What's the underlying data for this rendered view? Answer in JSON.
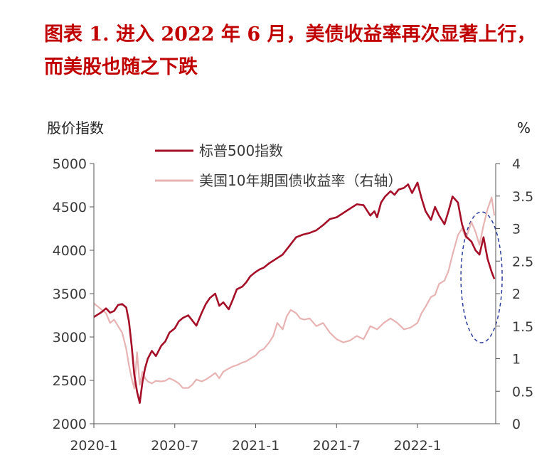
{
  "title": "图表 1.  进入 2022 年 6 月，美债收益率再次显著上行，而美股也随之下跌",
  "chart_data": {
    "type": "line",
    "left_axis_label": "股价指数",
    "right_axis_label": "%",
    "left_ylim": [
      2000,
      5000
    ],
    "left_ticks": [
      "5000",
      "4500",
      "4000",
      "3500",
      "3000",
      "2500",
      "2000"
    ],
    "left_tick_values": [
      5000,
      4500,
      4000,
      3500,
      3000,
      2500,
      2000
    ],
    "right_ylim": [
      0,
      4
    ],
    "right_ticks": [
      "4",
      "3.5",
      "3",
      "2.5",
      "2",
      "1.5",
      "1",
      "0.5",
      "0"
    ],
    "right_tick_values": [
      4,
      3.5,
      3,
      2.5,
      2,
      1.5,
      1,
      0.5,
      0
    ],
    "x_tick_labels": [
      "2020-1",
      "2020-7",
      "2021-1",
      "2021-7",
      "2022-1"
    ],
    "x_tick_values": [
      0,
      6,
      12,
      18,
      24
    ],
    "x_range": [
      0,
      29.8
    ],
    "grid": false,
    "legend_placement": "top-left",
    "annotation": "dashed ellipse highlighting 2022-5 to 2022-6",
    "series": [
      {
        "name": "标普500指数",
        "axis": "left",
        "color": "#a50f28",
        "x": [
          0,
          0.3,
          0.6,
          0.9,
          1.2,
          1.5,
          1.8,
          2.1,
          2.4,
          2.6,
          2.8,
          3.0,
          3.2,
          3.4,
          3.6,
          3.8,
          4.0,
          4.3,
          4.6,
          5.0,
          5.3,
          5.6,
          6.0,
          6.3,
          6.6,
          7.0,
          7.3,
          7.6,
          8.0,
          8.3,
          8.6,
          9.0,
          9.3,
          9.6,
          10.0,
          10.3,
          10.6,
          11.0,
          11.3,
          11.6,
          12.0,
          12.3,
          12.6,
          13.0,
          13.5,
          14.0,
          14.5,
          15.0,
          15.5,
          16.0,
          16.5,
          17.0,
          17.5,
          18.0,
          18.5,
          19.0,
          19.5,
          20.0,
          20.5,
          20.8,
          21.0,
          21.3,
          21.6,
          22.0,
          22.3,
          22.6,
          23.0,
          23.3,
          23.6,
          24.0,
          24.3,
          24.6,
          25.0,
          25.3,
          25.6,
          26.0,
          26.3,
          26.6,
          27.0,
          27.3,
          27.6,
          28.0,
          28.3,
          28.6,
          28.9,
          29.2,
          29.5,
          29.7
        ],
        "values": [
          3230,
          3260,
          3290,
          3330,
          3280,
          3300,
          3370,
          3380,
          3340,
          3180,
          2900,
          2560,
          2370,
          2240,
          2480,
          2640,
          2750,
          2840,
          2780,
          2900,
          2950,
          3050,
          3100,
          3180,
          3220,
          3250,
          3190,
          3130,
          3280,
          3380,
          3450,
          3500,
          3360,
          3400,
          3320,
          3430,
          3550,
          3580,
          3630,
          3700,
          3750,
          3780,
          3800,
          3850,
          3900,
          3950,
          4050,
          4150,
          4180,
          4200,
          4230,
          4290,
          4360,
          4380,
          4430,
          4480,
          4530,
          4520,
          4400,
          4450,
          4380,
          4550,
          4620,
          4680,
          4640,
          4700,
          4720,
          4760,
          4660,
          4780,
          4600,
          4450,
          4350,
          4500,
          4400,
          4300,
          4450,
          4620,
          4550,
          4300,
          4160,
          4100,
          4000,
          3950,
          4150,
          3900,
          3750,
          3670
        ]
      },
      {
        "name": "美国10年期国债收益率（右轴）",
        "axis": "right",
        "color": "#e8b3b3",
        "x": [
          0,
          0.3,
          0.6,
          0.9,
          1.2,
          1.5,
          1.8,
          2.1,
          2.4,
          2.6,
          2.8,
          3.0,
          3.2,
          3.4,
          3.6,
          3.8,
          4.0,
          4.3,
          4.6,
          5.0,
          5.3,
          5.6,
          6.0,
          6.3,
          6.6,
          7.0,
          7.3,
          7.6,
          8.0,
          8.3,
          8.6,
          9.0,
          9.3,
          9.6,
          10.0,
          10.3,
          10.6,
          11.0,
          11.3,
          11.6,
          12.0,
          12.3,
          12.6,
          13.0,
          13.3,
          13.6,
          14.0,
          14.3,
          14.6,
          15.0,
          15.3,
          15.6,
          16.0,
          16.5,
          17.0,
          17.5,
          18.0,
          18.5,
          19.0,
          19.5,
          20.0,
          20.5,
          21.0,
          21.5,
          22.0,
          22.5,
          23.0,
          23.5,
          24.0,
          24.3,
          24.6,
          25.0,
          25.3,
          25.6,
          26.0,
          26.3,
          26.6,
          27.0,
          27.3,
          27.6,
          28.0,
          28.3,
          28.6,
          28.9,
          29.2,
          29.5,
          29.7
        ],
        "values": [
          1.85,
          1.8,
          1.75,
          1.7,
          1.55,
          1.6,
          1.5,
          1.4,
          1.15,
          0.9,
          0.7,
          0.54,
          1.1,
          0.6,
          0.8,
          0.7,
          0.65,
          0.62,
          0.66,
          0.65,
          0.66,
          0.7,
          0.66,
          0.62,
          0.55,
          0.55,
          0.6,
          0.68,
          0.65,
          0.68,
          0.72,
          0.78,
          0.7,
          0.8,
          0.85,
          0.88,
          0.9,
          0.94,
          0.96,
          1.0,
          1.05,
          1.12,
          1.15,
          1.25,
          1.35,
          1.55,
          1.45,
          1.65,
          1.75,
          1.7,
          1.62,
          1.6,
          1.62,
          1.5,
          1.55,
          1.4,
          1.3,
          1.25,
          1.28,
          1.35,
          1.3,
          1.5,
          1.45,
          1.55,
          1.62,
          1.55,
          1.45,
          1.48,
          1.55,
          1.7,
          1.8,
          1.95,
          1.98,
          2.15,
          2.2,
          2.35,
          2.6,
          2.9,
          3.0,
          2.85,
          3.1,
          2.95,
          2.75,
          3.05,
          3.3,
          3.48,
          3.2
        ]
      }
    ]
  }
}
